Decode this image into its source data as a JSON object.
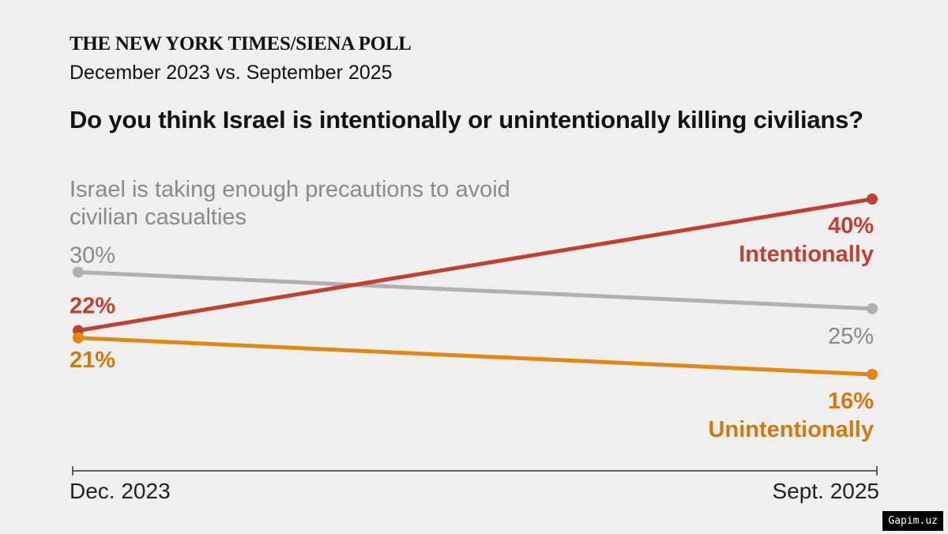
{
  "header": {
    "masthead": "THE NEW YORK TIMES/SIENA POLL",
    "subtitle": "December 2023 vs. September 2025",
    "question": "Do you think Israel is intentionally or unintentionally killing civilians?"
  },
  "chart_data": {
    "type": "line",
    "x": [
      "Dec. 2023",
      "Sept. 2025"
    ],
    "ylim": [
      0,
      50
    ],
    "grid": false,
    "series": [
      {
        "name": "Intentionally",
        "values": [
          22,
          40
        ],
        "labels": [
          "22%",
          "40%"
        ],
        "color": "#c0412f",
        "label_color": "#c0412f"
      },
      {
        "name": "Israel is taking enough precautions to avoid civilian casualties",
        "name_lines": [
          "Israel is taking enough precautions to avoid",
          "civilian casualties"
        ],
        "values": [
          30,
          25
        ],
        "labels": [
          "30%",
          "25%"
        ],
        "color": "#b0b0b0",
        "label_color": "#8a8a8a"
      },
      {
        "name": "Unintentionally",
        "values": [
          21,
          16
        ],
        "labels": [
          "21%",
          "16%"
        ],
        "color": "#e08812",
        "label_color": "#cf7a0c"
      }
    ]
  },
  "watermark": "Gapim.uz"
}
